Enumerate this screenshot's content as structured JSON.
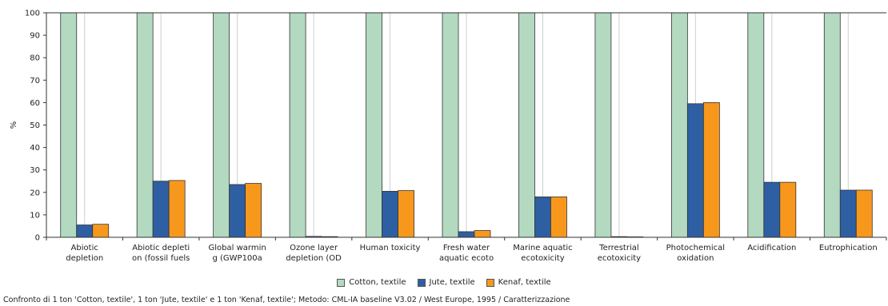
{
  "chart_data": {
    "type": "bar",
    "ylabel": "%",
    "ylim": [
      0,
      100
    ],
    "yticks": [
      0,
      10,
      20,
      30,
      40,
      50,
      60,
      70,
      80,
      90,
      100
    ],
    "grid": "vertical",
    "legend_position": "bottom-center",
    "categories": [
      [
        "Abiotic",
        "depletion"
      ],
      [
        "Abiotic depleti",
        "on (fossil fuels"
      ],
      [
        "Global warmin",
        "g (GWP100a"
      ],
      [
        "Ozone layer",
        "depletion (OD"
      ],
      [
        "Human toxicity"
      ],
      [
        "Fresh water",
        "aquatic ecoto"
      ],
      [
        "Marine aquatic",
        "ecotoxicity"
      ],
      [
        "Terrestrial",
        "ecotoxicity"
      ],
      [
        "Photochemical",
        "oxidation"
      ],
      [
        "Acidification"
      ],
      [
        "Eutrophication"
      ]
    ],
    "series": [
      {
        "name": "Cotton, textile",
        "color": "#b3d9c0",
        "values": [
          100,
          100,
          100,
          100,
          100,
          100,
          100,
          100,
          100,
          100,
          100
        ]
      },
      {
        "name": "Jute, textile",
        "color": "#2e5fa3",
        "values": [
          5.5,
          25,
          23.5,
          0.4,
          20.5,
          2.5,
          18,
          0.3,
          59.5,
          24.5,
          21
        ]
      },
      {
        "name": "Kenaf, textile",
        "color": "#f7981d",
        "values": [
          5.8,
          25.3,
          24,
          0.3,
          20.8,
          3,
          18,
          0.2,
          60,
          24.5,
          21
        ]
      }
    ]
  },
  "caption": "Confronto di 1 ton 'Cotton, textile', 1 ton 'Jute, textile' e 1 ton 'Kenaf, textile'; Metodo: CML-IA baseline V3.02 / West Europe, 1995 / Caratterizzazione"
}
